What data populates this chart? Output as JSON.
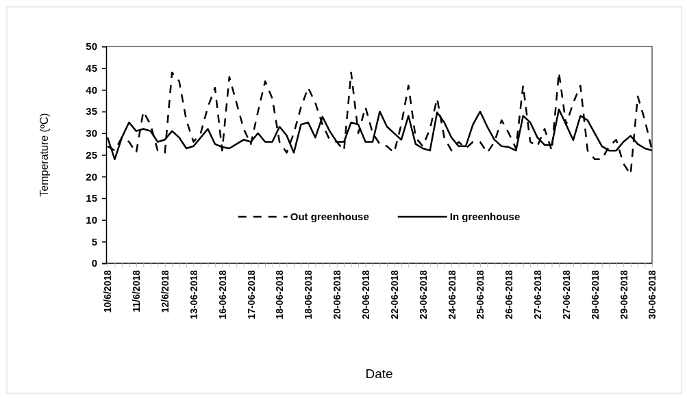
{
  "chart_data": {
    "type": "line",
    "xlabel": "Date",
    "ylabel": "Temperature (ºC)",
    "categories": [
      "10/6/2018",
      null,
      null,
      null,
      "11/6/2018",
      null,
      null,
      null,
      "12/6/2018",
      null,
      null,
      null,
      "13-06-2018",
      null,
      null,
      null,
      "16-06-2018",
      null,
      null,
      null,
      "17-06-2018",
      null,
      null,
      null,
      "18-06-2018",
      null,
      null,
      null,
      "18-06-2018",
      null,
      null,
      null,
      "20-06-2018",
      null,
      null,
      null,
      "20-06-2018",
      null,
      null,
      null,
      "22-06-2018",
      null,
      null,
      null,
      "23-06-2018",
      null,
      null,
      null,
      "24-06-2018",
      null,
      null,
      null,
      "25-06-2018",
      null,
      null,
      null,
      "26-06-2018",
      null,
      null,
      null,
      "27-06-2018",
      null,
      null,
      null,
      "27-06-2018",
      null,
      null,
      null,
      "28-06-2018",
      null,
      null,
      null,
      "29-06-2018",
      null,
      null,
      null,
      "30-06-2018"
    ],
    "series": [
      {
        "name": "Out greenhouse",
        "color": "#000000",
        "line_style": "dashed",
        "values": [
          27,
          26,
          29,
          28,
          25.5,
          35,
          32,
          26,
          25.5,
          44,
          42,
          33,
          28,
          30,
          36,
          40.5,
          26,
          43,
          37,
          31,
          27.5,
          35,
          42,
          38,
          28,
          25.5,
          30,
          36,
          40.5,
          37,
          32,
          28.5,
          28,
          26,
          44,
          30,
          36,
          30,
          27.5,
          27,
          25.5,
          32,
          41,
          29,
          27,
          31,
          38,
          29,
          26,
          28,
          26.5,
          28,
          28,
          25.5,
          28,
          33,
          30,
          26.5,
          41,
          28,
          27,
          31,
          26,
          44,
          32,
          37,
          41,
          26,
          24,
          24,
          27,
          28.5,
          23,
          20.5,
          38.5,
          33,
          26
        ]
      },
      {
        "name": "In greenhouse",
        "color": "#000000",
        "line_style": "solid",
        "values": [
          29,
          24,
          29,
          32.5,
          30.5,
          31,
          30.5,
          28,
          28.5,
          30.5,
          29,
          26.5,
          27,
          29,
          31,
          27.5,
          26.8,
          26.5,
          27.5,
          28.5,
          28,
          30,
          28,
          28,
          31.5,
          29.5,
          25.5,
          32,
          32.5,
          29,
          33.8,
          30.5,
          28,
          28,
          32.5,
          32,
          28,
          28,
          35,
          31.5,
          30,
          28.5,
          34,
          27.5,
          26.5,
          26,
          34.8,
          32.5,
          29,
          27,
          27,
          32,
          35,
          31.5,
          28.5,
          27,
          26.8,
          26,
          34,
          32.5,
          29,
          27.3,
          27.3,
          35.5,
          32,
          28.4,
          34,
          33,
          30,
          27,
          26,
          26,
          28,
          29.4,
          27.5,
          26.5,
          26
        ]
      }
    ],
    "ylim": [
      0,
      50
    ],
    "yticks": [
      0,
      5,
      10,
      15,
      20,
      25,
      30,
      35,
      40,
      45,
      50
    ],
    "grid": false,
    "legend": "bottom",
    "marker": "none"
  }
}
